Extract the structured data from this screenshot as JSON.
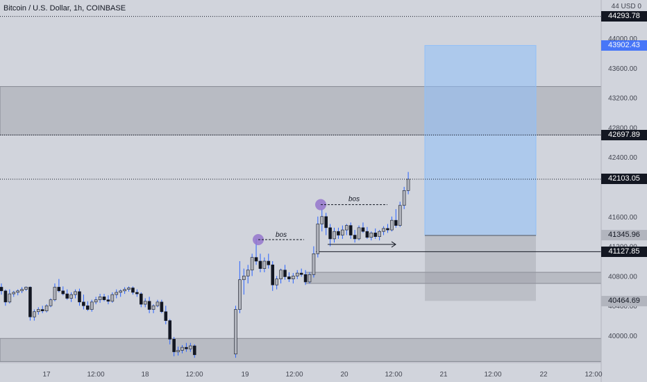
{
  "header": {
    "title": "Bitcoin / U.S. Dollar, 1h, COINBASE"
  },
  "price_axis": {
    "unit_label": "44 USD 0",
    "ticks": [
      "44000.00",
      "43600.00",
      "43200.00",
      "42800.00",
      "42400.00",
      "41600.00",
      "41200.00",
      "40800.00",
      "40400.00",
      "40000.00"
    ]
  },
  "time_axis": {
    "ticks": [
      "17",
      "12:00",
      "18",
      "12:00",
      "19",
      "12:00",
      "20",
      "12:00",
      "21",
      "12:00",
      "22",
      "12:00"
    ]
  },
  "price_labels": [
    {
      "text": "44293.78",
      "style": "dark",
      "value": 44293.78
    },
    {
      "text": "43902.43",
      "style": "blue",
      "value": 43902.43
    },
    {
      "text": "42697.89",
      "style": "dark",
      "value": 42697.89
    },
    {
      "text": "42103.05",
      "style": "dark",
      "value": 42103.05
    },
    {
      "text": "41345.96",
      "style": "grey",
      "value": 41345.96
    },
    {
      "text": "41127.85",
      "style": "dark",
      "value": 41127.85
    },
    {
      "text": "40464.69",
      "style": "grey",
      "value": 40464.69
    }
  ],
  "annotations": {
    "bos_1": "bos",
    "bos_2": "bos"
  },
  "colors": {
    "background": "#d1d4dc",
    "bull_candle": "#b2b5be",
    "bear_candle": "#131722",
    "wick": "#2962ff",
    "zone": "#787b86",
    "target": "#90bff9",
    "pivot": "#9575cd"
  },
  "chart_data": {
    "type": "candlestick",
    "symbol": "Bitcoin / U.S. Dollar",
    "interval": "1h",
    "exchange": "COINBASE",
    "y_range": [
      39700,
      44350
    ],
    "x_ticks": [
      "17",
      "12:00",
      "18",
      "12:00",
      "19",
      "12:00",
      "20",
      "12:00",
      "21",
      "12:00",
      "22",
      "12:00"
    ],
    "candles_ohlc": [
      [
        40650,
        40700,
        40550,
        40600
      ],
      [
        40600,
        40620,
        40400,
        40450
      ],
      [
        40450,
        40620,
        40430,
        40560
      ],
      [
        40560,
        40600,
        40520,
        40580
      ],
      [
        40580,
        40620,
        40540,
        40600
      ],
      [
        40600,
        40650,
        40570,
        40620
      ],
      [
        40620,
        40660,
        40600,
        40650
      ],
      [
        40650,
        40660,
        40200,
        40250
      ],
      [
        40250,
        40350,
        40200,
        40320
      ],
      [
        40320,
        40380,
        40280,
        40350
      ],
      [
        40350,
        40400,
        40300,
        40330
      ],
      [
        40330,
        40420,
        40310,
        40400
      ],
      [
        40400,
        40500,
        40380,
        40480
      ],
      [
        40480,
        40700,
        40460,
        40650
      ],
      [
        40650,
        40760,
        40580,
        40600
      ],
      [
        40600,
        40660,
        40540,
        40560
      ],
      [
        40560,
        40620,
        40480,
        40500
      ],
      [
        40500,
        40580,
        40450,
        40550
      ],
      [
        40550,
        40620,
        40500,
        40590
      ],
      [
        40590,
        40630,
        40400,
        40450
      ],
      [
        40450,
        40550,
        40350,
        40400
      ],
      [
        40400,
        40460,
        40330,
        40350
      ],
      [
        40350,
        40480,
        40320,
        40450
      ],
      [
        40450,
        40520,
        40420,
        40480
      ],
      [
        40480,
        40560,
        40440,
        40520
      ],
      [
        40520,
        40560,
        40460,
        40480
      ],
      [
        40480,
        40540,
        40420,
        40460
      ],
      [
        40460,
        40580,
        40440,
        40550
      ],
      [
        40550,
        40620,
        40500,
        40580
      ],
      [
        40580,
        40620,
        40520,
        40600
      ],
      [
        40600,
        40650,
        40560,
        40620
      ],
      [
        40620,
        40660,
        40590,
        40640
      ],
      [
        40640,
        40660,
        40550,
        40580
      ],
      [
        40580,
        40620,
        40520,
        40560
      ],
      [
        40560,
        40580,
        40380,
        40420
      ],
      [
        40420,
        40500,
        40380,
        40460
      ],
      [
        40460,
        40520,
        40300,
        40350
      ],
      [
        40350,
        40420,
        40300,
        40400
      ],
      [
        40400,
        40480,
        40380,
        40450
      ],
      [
        40450,
        40480,
        40300,
        40320
      ],
      [
        40320,
        40400,
        40150,
        40200
      ],
      [
        40200,
        40220,
        39880,
        39950
      ],
      [
        39950,
        39980,
        39720,
        39780
      ],
      [
        39780,
        39850,
        39730,
        39800
      ],
      [
        39800,
        39870,
        39760,
        39840
      ],
      [
        39840,
        39900,
        39780,
        39820
      ],
      [
        39820,
        39900,
        39780,
        39860
      ],
      [
        39860,
        39880,
        39700,
        39740
      ],
      [
        null,
        null,
        null,
        null
      ],
      [
        null,
        null,
        null,
        null
      ],
      [
        null,
        null,
        null,
        null
      ],
      [
        null,
        null,
        null,
        null
      ],
      [
        null,
        null,
        null,
        null
      ],
      [
        null,
        null,
        null,
        null
      ],
      [
        null,
        null,
        null,
        null
      ],
      [
        null,
        null,
        null,
        null
      ],
      [
        null,
        null,
        null,
        null
      ],
      [
        39750,
        40400,
        39700,
        40350
      ],
      [
        40350,
        41000,
        40300,
        40750
      ],
      [
        40750,
        40900,
        40550,
        40800
      ],
      [
        40800,
        40950,
        40700,
        40880
      ],
      [
        40880,
        41100,
        40800,
        41050
      ],
      [
        41050,
        41300,
        40950,
        41000
      ],
      [
        41000,
        41100,
        40850,
        40900
      ],
      [
        40900,
        41050,
        40850,
        41000
      ],
      [
        41000,
        41100,
        40900,
        40950
      ],
      [
        40950,
        41000,
        40600,
        40680
      ],
      [
        40680,
        40800,
        40620,
        40760
      ],
      [
        40760,
        40900,
        40700,
        40880
      ],
      [
        40880,
        40950,
        40750,
        40790
      ],
      [
        40790,
        40850,
        40720,
        40760
      ],
      [
        40760,
        40840,
        40700,
        40800
      ],
      [
        40800,
        40880,
        40760,
        40840
      ],
      [
        40840,
        40900,
        40790,
        40820
      ],
      [
        40820,
        40880,
        40680,
        40720
      ],
      [
        40720,
        40850,
        40700,
        40820
      ],
      [
        40820,
        41200,
        40780,
        41100
      ],
      [
        41100,
        41600,
        41050,
        41500
      ],
      [
        41500,
        41700,
        41400,
        41600
      ],
      [
        41600,
        41650,
        41350,
        41450
      ],
      [
        41450,
        41500,
        41200,
        41300
      ],
      [
        41300,
        41450,
        41250,
        41400
      ],
      [
        41400,
        41450,
        41300,
        41350
      ],
      [
        41350,
        41480,
        41300,
        41420
      ],
      [
        41420,
        41500,
        41350,
        41480
      ],
      [
        41480,
        41520,
        41300,
        41350
      ],
      [
        41350,
        41420,
        41250,
        41300
      ],
      [
        41300,
        41480,
        41280,
        41450
      ],
      [
        41450,
        41520,
        41380,
        41400
      ],
      [
        41400,
        41460,
        41300,
        41320
      ],
      [
        41320,
        41400,
        41280,
        41380
      ],
      [
        41380,
        41440,
        41300,
        41330
      ],
      [
        41330,
        41420,
        41280,
        41400
      ],
      [
        41400,
        41470,
        41350,
        41440
      ],
      [
        41440,
        41500,
        41380,
        41420
      ],
      [
        41420,
        41600,
        41400,
        41550
      ],
      [
        41550,
        41700,
        41450,
        41480
      ],
      [
        41480,
        41800,
        41460,
        41750
      ],
      [
        41750,
        42000,
        41700,
        41950
      ],
      [
        41950,
        42200,
        41900,
        42103
      ]
    ],
    "horizontal_levels": [
      44293.78,
      42697.89,
      42103.05,
      41127.85
    ],
    "zones": [
      {
        "from": 42697.89,
        "to": 43350
      },
      {
        "from": 40700,
        "to": 40850
      },
      {
        "from": 39650,
        "to": 39960
      }
    ],
    "long_position": {
      "entry": 41345.96,
      "target": 43902.43,
      "stop": 40464.69
    },
    "annotations": [
      "bos",
      "bos"
    ]
  }
}
